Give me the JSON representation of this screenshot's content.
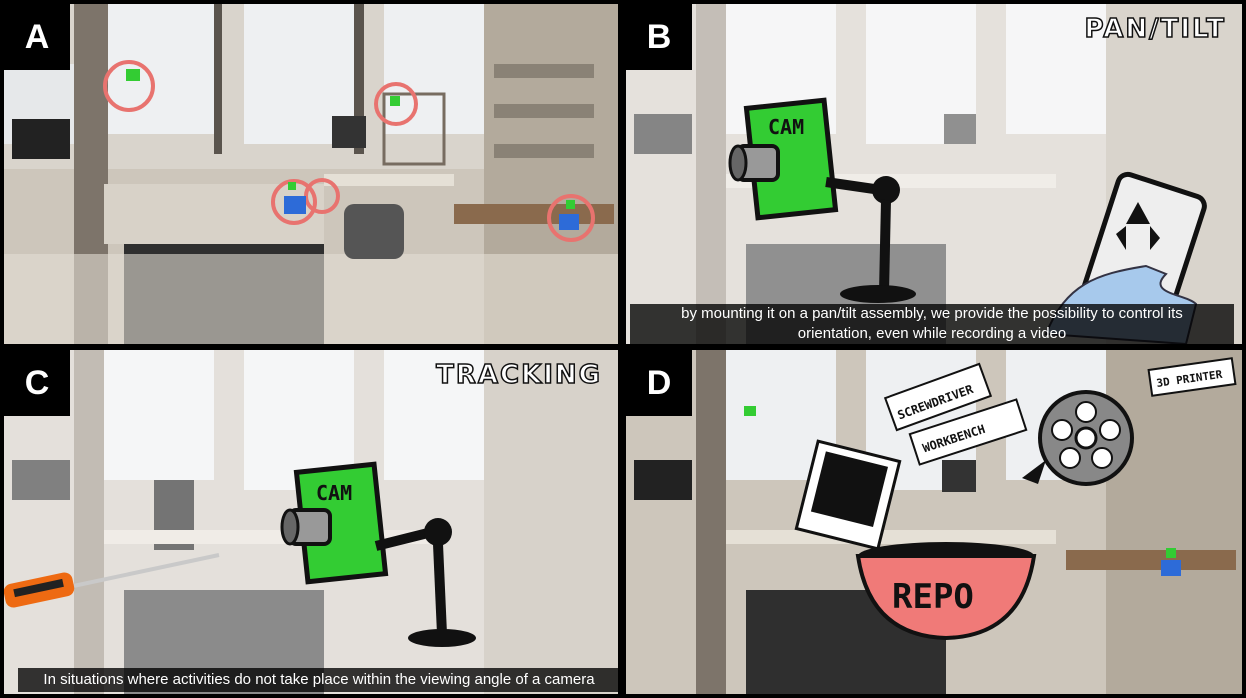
{
  "panels": [
    {
      "letter": "A",
      "title": ""
    },
    {
      "letter": "B",
      "title": "PAN/TILT",
      "caption_line1": "by mounting it on a pan/tilt assembly, we provide the possibility to control its",
      "caption_line2": "orientation, even while recording a video"
    },
    {
      "letter": "C",
      "title": "TRACKING",
      "caption": "In situations where activities do not take place within the viewing angle of a camera"
    },
    {
      "letter": "D",
      "title": ""
    }
  ],
  "sketch": {
    "cam_label": "CAM",
    "tags": [
      "SCREWDRIVER",
      "WORKBENCH",
      "3D PRINTER"
    ],
    "repo_label": "REPO"
  },
  "colors": {
    "cam_green": "#33cc33",
    "highlight_ring": "#e8736f",
    "repo_red": "#f07a78",
    "lab_bg": "#cfc8bd"
  }
}
